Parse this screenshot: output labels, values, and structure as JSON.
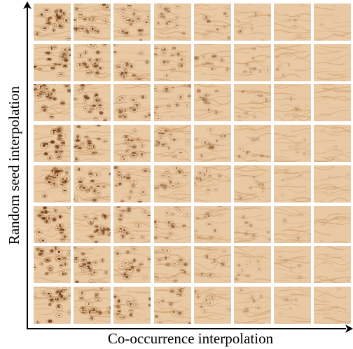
{
  "figure": {
    "x_axis_label": "Co-occurrence interpolation",
    "y_axis_label": "Random seed interpolation"
  },
  "grid": {
    "rows": 8,
    "columns": 8,
    "tile_description": "wood burl texture sample",
    "base_color": "#e9c9a4",
    "dark_color": "#6b3a16"
  }
}
